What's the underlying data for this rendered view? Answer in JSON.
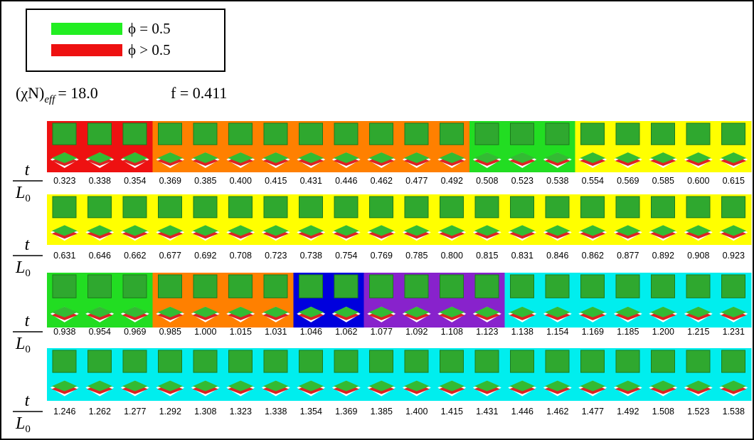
{
  "legend": {
    "items": [
      {
        "label": "ϕ = 0.5",
        "color": "#22ee22"
      },
      {
        "label": "ϕ > 0.5",
        "color": "#ee1111"
      }
    ]
  },
  "parameters": {
    "chi_label": "(χN)",
    "chi_sub": "eff",
    "chi_value": "= 18.0",
    "f": "f = 0.411"
  },
  "row_label": {
    "numerator": "t",
    "denominator": "L",
    "denominator_sub": "0"
  },
  "rows": [
    {
      "values": [
        "0.323",
        "0.338",
        "0.354",
        "0.369",
        "0.385",
        "0.400",
        "0.415",
        "0.431",
        "0.446",
        "0.462",
        "0.477",
        "0.492",
        "0.508",
        "0.523",
        "0.538",
        "0.554",
        "0.569",
        "0.585",
        "0.600",
        "0.615"
      ],
      "backgrounds": [
        "#ee1111",
        "#ee1111",
        "#ee1111",
        "#ff8000",
        "#ff8000",
        "#ff8000",
        "#ff8000",
        "#ff8000",
        "#ff8000",
        "#ff8000",
        "#ff8000",
        "#ff8000",
        "#22dd22",
        "#22dd22",
        "#22dd22",
        "#ffff00",
        "#ffff00",
        "#ffff00",
        "#ffff00",
        "#ffff00"
      ]
    },
    {
      "values": [
        "0.631",
        "0.646",
        "0.662",
        "0.677",
        "0.692",
        "0.708",
        "0.723",
        "0.738",
        "0.754",
        "0.769",
        "0.785",
        "0.800",
        "0.815",
        "0.831",
        "0.846",
        "0.862",
        "0.877",
        "0.892",
        "0.908",
        "0.923"
      ],
      "backgrounds": [
        "#ffff00",
        "#ffff00",
        "#ffff00",
        "#ffff00",
        "#ffff00",
        "#ffff00",
        "#ffff00",
        "#ffff00",
        "#ffff00",
        "#ffff00",
        "#ffff00",
        "#ffff00",
        "#ffff00",
        "#ffff00",
        "#ffff00",
        "#ffff00",
        "#ffff00",
        "#ffff00",
        "#ffff00",
        "#ffff00"
      ]
    },
    {
      "values": [
        "0.938",
        "0.954",
        "0.969",
        "0.985",
        "1.000",
        "1.015",
        "1.031",
        "1.046",
        "1.062",
        "1.077",
        "1.092",
        "1.108",
        "1.123",
        "1.138",
        "1.154",
        "1.169",
        "1.185",
        "1.200",
        "1.215",
        "1.231"
      ],
      "backgrounds": [
        "#22dd22",
        "#22dd22",
        "#22dd22",
        "#ff8000",
        "#ff8000",
        "#ff8000",
        "#ff8000",
        "#0000dd",
        "#0000dd",
        "#8822cc",
        "#8822cc",
        "#8822cc",
        "#8822cc",
        "#00eeee",
        "#00eeee",
        "#00eeee",
        "#00eeee",
        "#00eeee",
        "#00eeee",
        "#00eeee"
      ]
    },
    {
      "values": [
        "1.246",
        "1.262",
        "1.277",
        "1.292",
        "1.308",
        "1.323",
        "1.338",
        "1.354",
        "1.369",
        "1.385",
        "1.400",
        "1.415",
        "1.431",
        "1.446",
        "1.462",
        "1.477",
        "1.492",
        "1.508",
        "1.523",
        "1.538"
      ],
      "backgrounds": [
        "#00eeee",
        "#00eeee",
        "#00eeee",
        "#00eeee",
        "#00eeee",
        "#00eeee",
        "#00eeee",
        "#00eeee",
        "#00eeee",
        "#00eeee",
        "#00eeee",
        "#00eeee",
        "#00eeee",
        "#00eeee",
        "#00eeee",
        "#00eeee",
        "#00eeee",
        "#00eeee",
        "#00eeee",
        "#00eeee"
      ]
    }
  ]
}
